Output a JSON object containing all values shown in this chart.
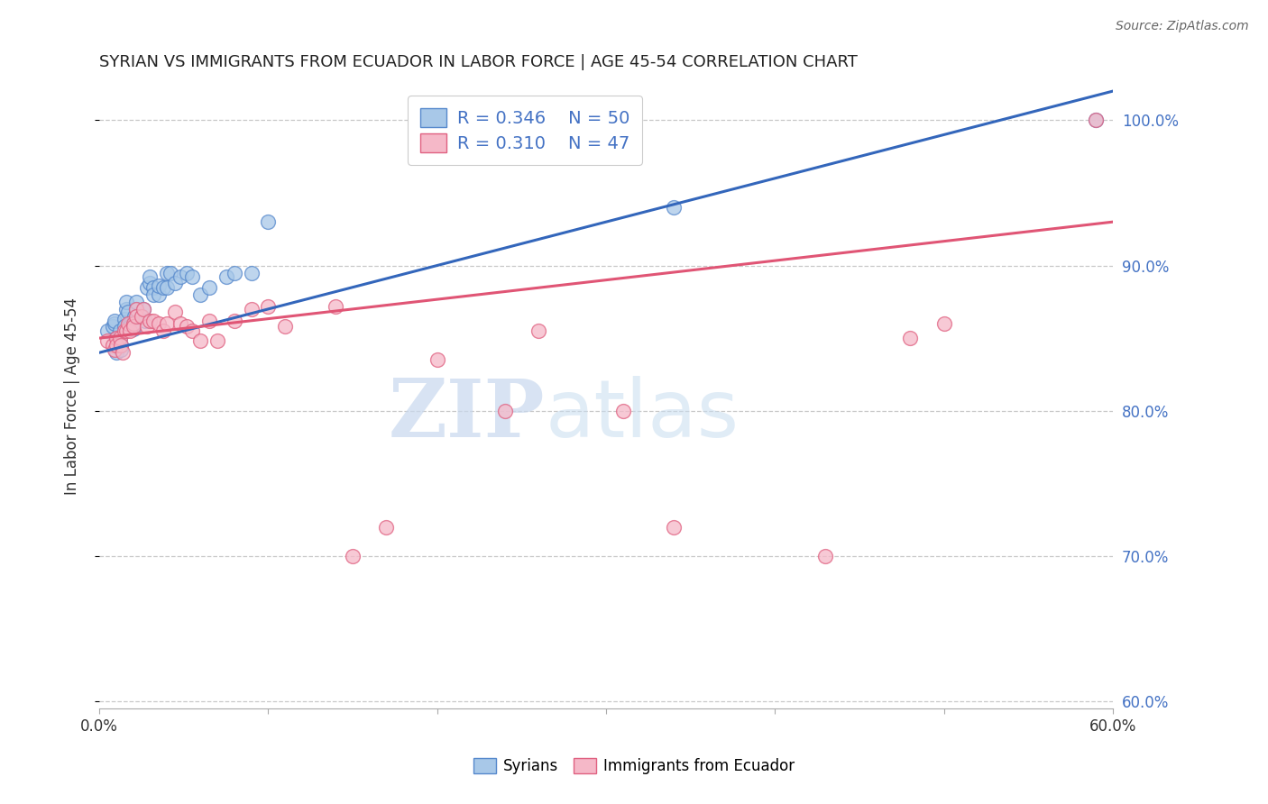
{
  "title": "SYRIAN VS IMMIGRANTS FROM ECUADOR IN LABOR FORCE | AGE 45-54 CORRELATION CHART",
  "source": "Source: ZipAtlas.com",
  "ylabel": "In Labor Force | Age 45-54",
  "xlim": [
    0.0,
    0.6
  ],
  "ylim": [
    0.595,
    1.025
  ],
  "yticks": [
    0.6,
    0.7,
    0.8,
    0.9,
    1.0
  ],
  "xtick_positions": [
    0.0,
    0.1,
    0.2,
    0.3,
    0.4,
    0.5,
    0.6
  ],
  "xtick_labels": [
    "0.0%",
    "",
    "",
    "",
    "",
    "",
    "60.0%"
  ],
  "ytick_labels_right": [
    "60.0%",
    "70.0%",
    "80.0%",
    "90.0%",
    "100.0%"
  ],
  "blue_color": "#a8c8e8",
  "pink_color": "#f5b8c8",
  "blue_edge_color": "#5588cc",
  "pink_edge_color": "#e06080",
  "blue_line_color": "#3366bb",
  "pink_line_color": "#e05575",
  "legend_blue_R": "0.346",
  "legend_blue_N": "50",
  "legend_pink_R": "0.310",
  "legend_pink_N": "47",
  "legend_label_blue": "Syrians",
  "legend_label_pink": "Immigrants from Ecuador",
  "watermark_zip": "ZIP",
  "watermark_atlas": "atlas",
  "right_label_color": "#4472c4",
  "blue_x": [
    0.005,
    0.008,
    0.009,
    0.009,
    0.01,
    0.01,
    0.01,
    0.012,
    0.012,
    0.013,
    0.013,
    0.015,
    0.015,
    0.016,
    0.016,
    0.017,
    0.018,
    0.018,
    0.02,
    0.02,
    0.02,
    0.021,
    0.022,
    0.022,
    0.025,
    0.026,
    0.027,
    0.028,
    0.03,
    0.03,
    0.032,
    0.032,
    0.035,
    0.035,
    0.038,
    0.04,
    0.04,
    0.042,
    0.045,
    0.048,
    0.052,
    0.055,
    0.06,
    0.065,
    0.075,
    0.08,
    0.09,
    0.1,
    0.34,
    0.59
  ],
  "blue_y": [
    0.855,
    0.858,
    0.86,
    0.862,
    0.85,
    0.845,
    0.84,
    0.85,
    0.855,
    0.845,
    0.842,
    0.863,
    0.858,
    0.87,
    0.875,
    0.868,
    0.86,
    0.858,
    0.86,
    0.858,
    0.856,
    0.865,
    0.87,
    0.875,
    0.865,
    0.87,
    0.862,
    0.885,
    0.888,
    0.892,
    0.885,
    0.88,
    0.88,
    0.886,
    0.885,
    0.895,
    0.885,
    0.895,
    0.888,
    0.892,
    0.895,
    0.892,
    0.88,
    0.885,
    0.892,
    0.895,
    0.895,
    0.93,
    0.94,
    1.0
  ],
  "pink_x": [
    0.005,
    0.008,
    0.009,
    0.01,
    0.01,
    0.012,
    0.013,
    0.014,
    0.015,
    0.016,
    0.017,
    0.018,
    0.02,
    0.02,
    0.022,
    0.022,
    0.025,
    0.026,
    0.028,
    0.03,
    0.032,
    0.035,
    0.038,
    0.04,
    0.045,
    0.048,
    0.052,
    0.055,
    0.06,
    0.065,
    0.07,
    0.08,
    0.09,
    0.1,
    0.11,
    0.14,
    0.15,
    0.17,
    0.2,
    0.24,
    0.26,
    0.31,
    0.34,
    0.43,
    0.48,
    0.5,
    0.59
  ],
  "pink_y": [
    0.848,
    0.845,
    0.842,
    0.85,
    0.845,
    0.85,
    0.845,
    0.84,
    0.855,
    0.855,
    0.86,
    0.855,
    0.86,
    0.858,
    0.87,
    0.865,
    0.865,
    0.87,
    0.858,
    0.862,
    0.862,
    0.86,
    0.855,
    0.86,
    0.868,
    0.86,
    0.858,
    0.855,
    0.848,
    0.862,
    0.848,
    0.862,
    0.87,
    0.872,
    0.858,
    0.872,
    0.7,
    0.72,
    0.835,
    0.8,
    0.855,
    0.8,
    0.72,
    0.7,
    0.85,
    0.86,
    1.0
  ],
  "blue_trend_x0": 0.0,
  "blue_trend_y0": 0.84,
  "blue_trend_x1": 0.6,
  "blue_trend_y1": 1.02,
  "pink_trend_x0": 0.0,
  "pink_trend_y0": 0.85,
  "pink_trend_x1": 0.6,
  "pink_trend_y1": 0.93
}
